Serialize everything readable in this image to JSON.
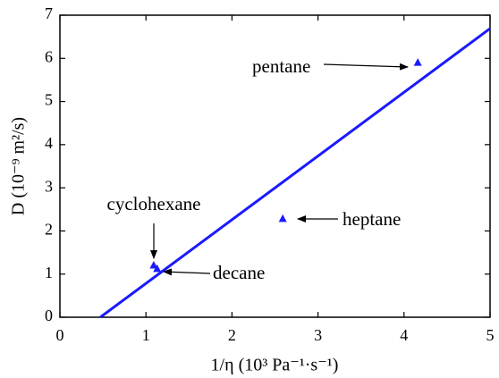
{
  "chart_data": {
    "type": "scatter",
    "xlabel": "1/η (10³ Pa⁻¹·s⁻¹)",
    "ylabel": "D (10⁻⁹ m²/s)",
    "xlim": [
      0,
      5
    ],
    "ylim": [
      0,
      7
    ],
    "xticks": [
      0,
      1,
      2,
      3,
      4,
      5
    ],
    "yticks": [
      0,
      1,
      2,
      3,
      4,
      5,
      6,
      7
    ],
    "series": [
      {
        "type": "line",
        "color": "#1a1aff",
        "x": [
          0.47,
          5
        ],
        "values": [
          0,
          6.69
        ]
      },
      {
        "type": "scatter",
        "color": "#1a1aff",
        "x": [
          1.09,
          1.13,
          2.59,
          4.16
        ],
        "values": [
          1.2,
          1.12,
          2.28,
          5.9
        ],
        "labels": [
          "cyclohexane",
          "decane",
          "heptane",
          "pentane"
        ]
      }
    ]
  }
}
